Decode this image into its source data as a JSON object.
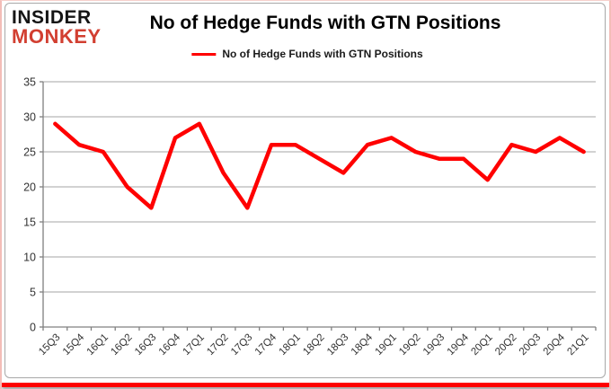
{
  "logo": {
    "line1": "INSIDER",
    "line2": "MONKEY"
  },
  "header": {
    "title": "No of Hedge Funds with GTN Positions"
  },
  "legend": {
    "label": "No of Hedge Funds with GTN Positions"
  },
  "colors": {
    "series_line": "#ff0000",
    "gridline": "#a6a6a6",
    "axis": "#808080",
    "tick_label": "#333333",
    "logo_black": "#151515",
    "logo_red": "#d23f31",
    "bottom_bar": "#fe0100",
    "card_border": "#a8a8a8"
  },
  "chart_data": {
    "type": "line",
    "title": "No of Hedge Funds with GTN Positions",
    "categories": [
      "15Q3",
      "15Q4",
      "16Q1",
      "16Q2",
      "16Q3",
      "16Q4",
      "17Q1",
      "17Q2",
      "17Q3",
      "17Q4",
      "18Q1",
      "18Q2",
      "18Q3",
      "18Q4",
      "19Q1",
      "19Q2",
      "19Q3",
      "19Q4",
      "20Q1",
      "20Q2",
      "20Q3",
      "20Q4",
      "21Q1"
    ],
    "series": [
      {
        "name": "No of Hedge Funds with GTN Positions",
        "color": "#ff0000",
        "values": [
          29,
          26,
          25,
          20,
          17,
          27,
          29,
          22,
          17,
          26,
          26,
          24,
          22,
          26,
          27,
          25,
          24,
          24,
          21,
          26,
          25,
          27,
          25
        ]
      }
    ],
    "ylim": [
      0,
      35
    ],
    "yticks": [
      0,
      5,
      10,
      15,
      20,
      25,
      30,
      35
    ],
    "xlabel": "",
    "ylabel": "",
    "grid": "horizontal",
    "legend_position": "top-center",
    "x_label_rotation_deg": 45
  }
}
